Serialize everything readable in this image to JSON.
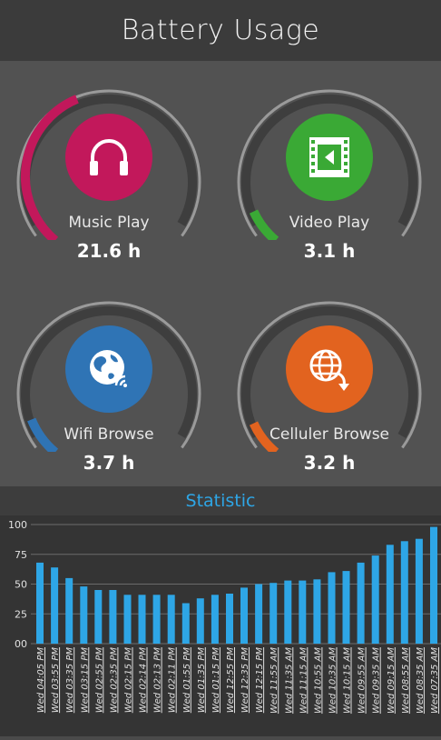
{
  "app": {
    "title": "Battery Usage"
  },
  "gauges": [
    {
      "label": "Music Play",
      "value": "21.6 h",
      "fraction": 0.42,
      "color": "#c2185b",
      "icon": "headphones-icon"
    },
    {
      "label": "Video Play",
      "value": "3.1 h",
      "fraction": 0.09,
      "color": "#3aa935",
      "icon": "film-icon"
    },
    {
      "label": "Wifi Browse",
      "value": "3.7 h",
      "fraction": 0.1,
      "color": "#2f74b5",
      "icon": "globe-wifi-icon"
    },
    {
      "label": "Celluler Browse",
      "value": "3.2 h",
      "fraction": 0.09,
      "color": "#e2631f",
      "icon": "globe-arrow-icon"
    }
  ],
  "statistic": {
    "title": "Statistic"
  },
  "chart_data": {
    "type": "bar",
    "ylim": [
      0,
      100
    ],
    "yticks": [
      "00",
      "25",
      "50",
      "75",
      "100"
    ],
    "bar_color": "#2ea6e6",
    "grid": true,
    "categories": [
      "Wed 04:05 PM",
      "Wed 03:55 PM",
      "Wed 03:35 PM",
      "Wed 03:15 PM",
      "Wed 02:55 PM",
      "Wed 02:35 PM",
      "Wed 02:15 PM",
      "Wed 02:14 PM",
      "Wed 02:13 PM",
      "Wed 02:11 PM",
      "Wed 01:55 PM",
      "Wed 01:35 PM",
      "Wed 01:15 PM",
      "Wed 12:55 PM",
      "Wed 12:35 PM",
      "Wed 12:15 PM",
      "Wed 11:55 AM",
      "Wed 11:35 AM",
      "Wed 11:15 AM",
      "Wed 10:55 AM",
      "Wed 10:35 AM",
      "Wed 10:15 AM",
      "Wed 09:55 AM",
      "Wed 09:35 AM",
      "Wed 09:15 AM",
      "Wed 08:55 AM",
      "Wed 08:35 AM",
      "Wed 07:35 AM"
    ],
    "values": [
      68,
      64,
      55,
      48,
      45,
      45,
      41,
      41,
      41,
      41,
      34,
      38,
      41,
      42,
      47,
      50,
      51,
      53,
      53,
      54,
      60,
      61,
      68,
      74,
      83,
      86,
      88,
      98
    ]
  }
}
